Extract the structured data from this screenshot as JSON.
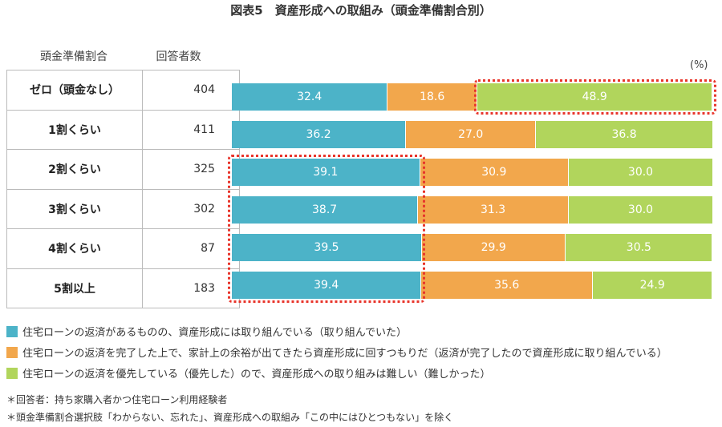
{
  "title": "図表5　資産形成への取組み（頭金準備割合別）",
  "table": {
    "headers": [
      "頭金準備割合",
      "回答者数"
    ],
    "rows": [
      {
        "label": "ゼロ（頭金なし）",
        "count": "404"
      },
      {
        "label": "1割くらい",
        "count": "411"
      },
      {
        "label": "2割くらい",
        "count": "325"
      },
      {
        "label": "3割くらい",
        "count": "302"
      },
      {
        "label": "4割くらい",
        "count": "87"
      },
      {
        "label": "5割以上",
        "count": "183"
      }
    ]
  },
  "chart_data": {
    "type": "bar",
    "orientation": "horizontal",
    "stacked": "100%",
    "unit": "(%)",
    "categories": [
      "ゼロ（頭金なし）",
      "1割くらい",
      "2割くらい",
      "3割くらい",
      "4割くらい",
      "5割以上"
    ],
    "series": [
      {
        "name": "住宅ローンの返済があるものの、資産形成には取り組んでいる（取り組んでいた）",
        "color": "#4cb3c8",
        "values": [
          32.4,
          36.2,
          39.1,
          38.7,
          39.5,
          39.4
        ]
      },
      {
        "name": "住宅ローンの返済を完了した上で、家計上の余裕が出てきたら資産形成に回すつもりだ（返済が完了したので資産形成に取り組んでいる）",
        "color": "#f2a74c",
        "values": [
          18.6,
          27.0,
          30.9,
          31.3,
          29.9,
          35.6
        ]
      },
      {
        "name": "住宅ローンの返済を優先している（優先した）ので、資産形成への取り組みは難しい（難しかった）",
        "color": "#b1d55c",
        "values": [
          48.9,
          36.8,
          30.0,
          30.0,
          30.5,
          24.9
        ]
      }
    ],
    "highlights": [
      {
        "series": 2,
        "categories": [
          0
        ]
      },
      {
        "series": 0,
        "categories": [
          2,
          3,
          4,
          5
        ]
      }
    ],
    "highlight_color": "#e8352b"
  },
  "notes": [
    "＊回答者：持ち家購入者かつ住宅ローン利用経験者",
    "＊頭金準備割合選択肢「わからない、忘れた」、資産形成への取組み「この中にはひとつもない」を除く"
  ]
}
